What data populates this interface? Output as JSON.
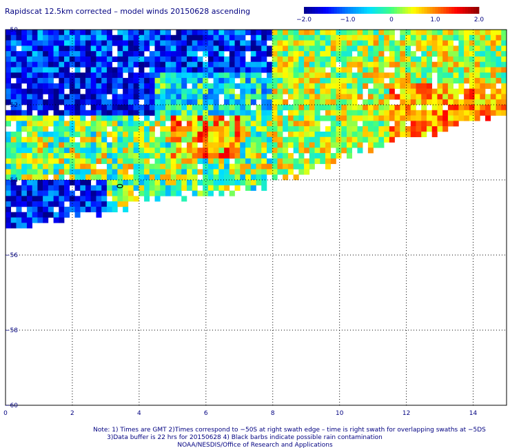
{
  "chart_data": {
    "type": "heatmap",
    "title": "Rapidscat 12.5km corrected – model winds 20150628 ascending",
    "x_ticks": [
      "0",
      "2",
      "4",
      "6",
      "8",
      "10",
      "12",
      "14"
    ],
    "x_tick_values": [
      0,
      2,
      4,
      6,
      8,
      10,
      12,
      14
    ],
    "y_ticks": [
      "−50",
      "−52",
      "−54",
      "−56",
      "−58",
      "−60"
    ],
    "y_tick_values": [
      -50,
      -52,
      -54,
      -56,
      -58,
      -60
    ],
    "xlim": [
      0,
      15
    ],
    "ylim": [
      -60,
      -50
    ],
    "grid": true,
    "colorbar": {
      "min": -2.0,
      "max": 2.0,
      "tick_labels": [
        "−2.0",
        "−1.0",
        "0",
        "1.0",
        "2.0"
      ],
      "tick_values": [
        -2.0,
        -1.0,
        0,
        1.0,
        2.0
      ],
      "colors": [
        "#00008b",
        "#0000ff",
        "#0080ff",
        "#00e0ff",
        "#40ff80",
        "#ffff00",
        "#ff8000",
        "#ff0000",
        "#8b0000"
      ]
    },
    "regions": [
      {
        "x": [
          0,
          8
        ],
        "y": [
          -51.5,
          -50
        ],
        "mean": -1.3,
        "spread": 0.8
      },
      {
        "x": [
          0,
          4.5
        ],
        "y": [
          -52.3,
          -51.2
        ],
        "mean": -1.5,
        "spread": 0.6
      },
      {
        "x": [
          4.5,
          8
        ],
        "y": [
          -52.3,
          -51.2
        ],
        "mean": -0.4,
        "spread": 0.8
      },
      {
        "x": [
          0,
          8
        ],
        "y": [
          -54,
          -52.3
        ],
        "mean": 0.1,
        "spread": 0.9
      },
      {
        "x": [
          5,
          7
        ],
        "y": [
          -53.5,
          -52.3
        ],
        "mean": 0.8,
        "spread": 0.8
      },
      {
        "x": [
          0,
          3
        ],
        "y": [
          -55.5,
          -54
        ],
        "mean": -1.4,
        "spread": 0.7
      },
      {
        "x": [
          3,
          8
        ],
        "y": [
          -55.5,
          -54
        ],
        "mean": 0.0,
        "spread": 0.8
      },
      {
        "x": [
          8,
          15
        ],
        "y": [
          -54,
          -50
        ],
        "mean": 0.3,
        "spread": 0.7
      },
      {
        "x": [
          11.5,
          15
        ],
        "y": [
          -53,
          -51.5
        ],
        "mean": 0.9,
        "spread": 0.6
      }
    ],
    "coverage_edge": [
      [
        0,
        -55.5
      ],
      [
        0.5,
        -55.3
      ],
      [
        1.5,
        -55.1
      ],
      [
        2.5,
        -54.9
      ],
      [
        3.5,
        -54.8
      ],
      [
        4,
        -54.5
      ],
      [
        6,
        -54.4
      ],
      [
        8,
        -54.1
      ],
      [
        9,
        -53.8
      ],
      [
        10,
        -53.4
      ],
      [
        11,
        -53.1
      ],
      [
        12,
        -52.9
      ],
      [
        13,
        -52.7
      ],
      [
        14,
        -52.4
      ],
      [
        15,
        -52.2
      ]
    ]
  },
  "notes": {
    "line1": "Note: 1) Times are GMT 2)Times correspond to −50S at right swath edge – time is right swath for overlapping swaths at −5DS",
    "line2": "3)Data buffer is 22 hrs for 20150628 4) Black barbs indicate possible rain contamination",
    "line3": "NOAA/NESDIS/Office of Research and Applications"
  }
}
